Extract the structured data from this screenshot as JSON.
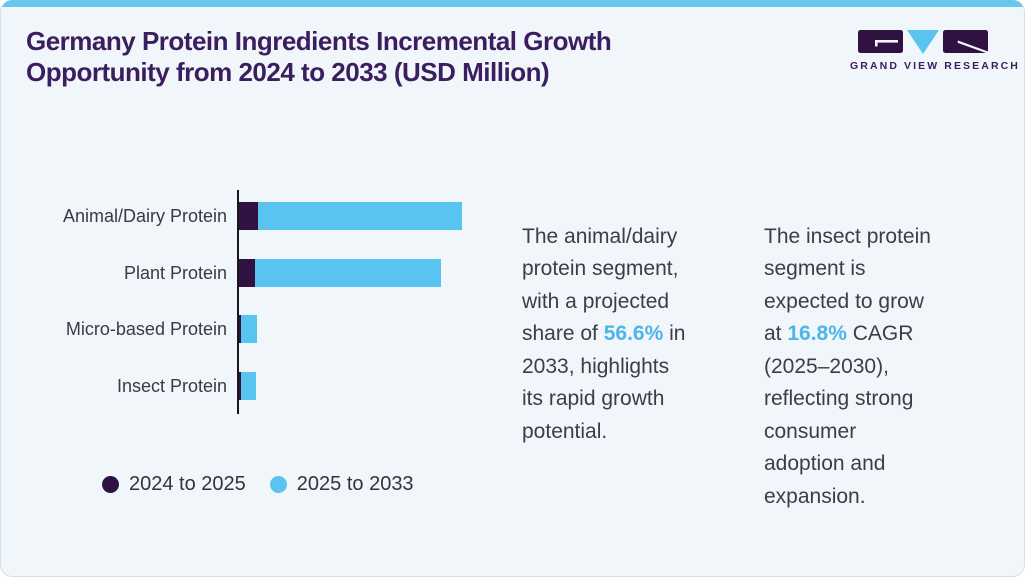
{
  "header": {
    "title": "Germany Protein Ingredients Incremental Growth\nOpportunity from 2024 to 2033 (USD Million)"
  },
  "logo": {
    "wordmark": "GRAND VIEW RESEARCH"
  },
  "colors": {
    "accent_bar": "#69c6ec",
    "title_purple": "#3b1e5f",
    "series_purple": "#2f1242",
    "series_blue": "#5ac4f0",
    "highlight_blue": "#4db5e9",
    "card_background": "#f0f6fa",
    "axis": "#17171d"
  },
  "chart_data": {
    "type": "bar",
    "orientation": "horizontal",
    "stacked": true,
    "title": "Germany Protein Ingredients Incremental Growth Opportunity from 2024 to 2033 (USD Million)",
    "categories": [
      "Animal/Dairy Protein",
      "Plant Protein",
      "Micro-based Protein",
      "Insect Protein"
    ],
    "series": [
      {
        "name": "2024 to 2025",
        "color": "#2f1242",
        "values": [
          19,
          16,
          2,
          2
        ]
      },
      {
        "name": "2025 to 2033",
        "color": "#5ac4f0",
        "values": [
          204,
          186,
          16,
          15
        ]
      }
    ],
    "value_axis_visible": false,
    "units_note": "No numeric axis shown; values are relative segment lengths estimated in pixels",
    "legend_position": "bottom-left",
    "grid": false
  },
  "insights": [
    {
      "pre": "The animal/dairy\nprotein segment,\nwith a projected\nshare of ",
      "highlight": "56.6%",
      "post": " in\n2033, highlights\nits rapid growth\npotential."
    },
    {
      "pre": "The insect protein\nsegment is\nexpected to grow\nat ",
      "highlight": "16.8%",
      "post": " CAGR\n(2025–2030),\nreflecting strong\nconsumer\nadoption and\nexpansion."
    }
  ]
}
